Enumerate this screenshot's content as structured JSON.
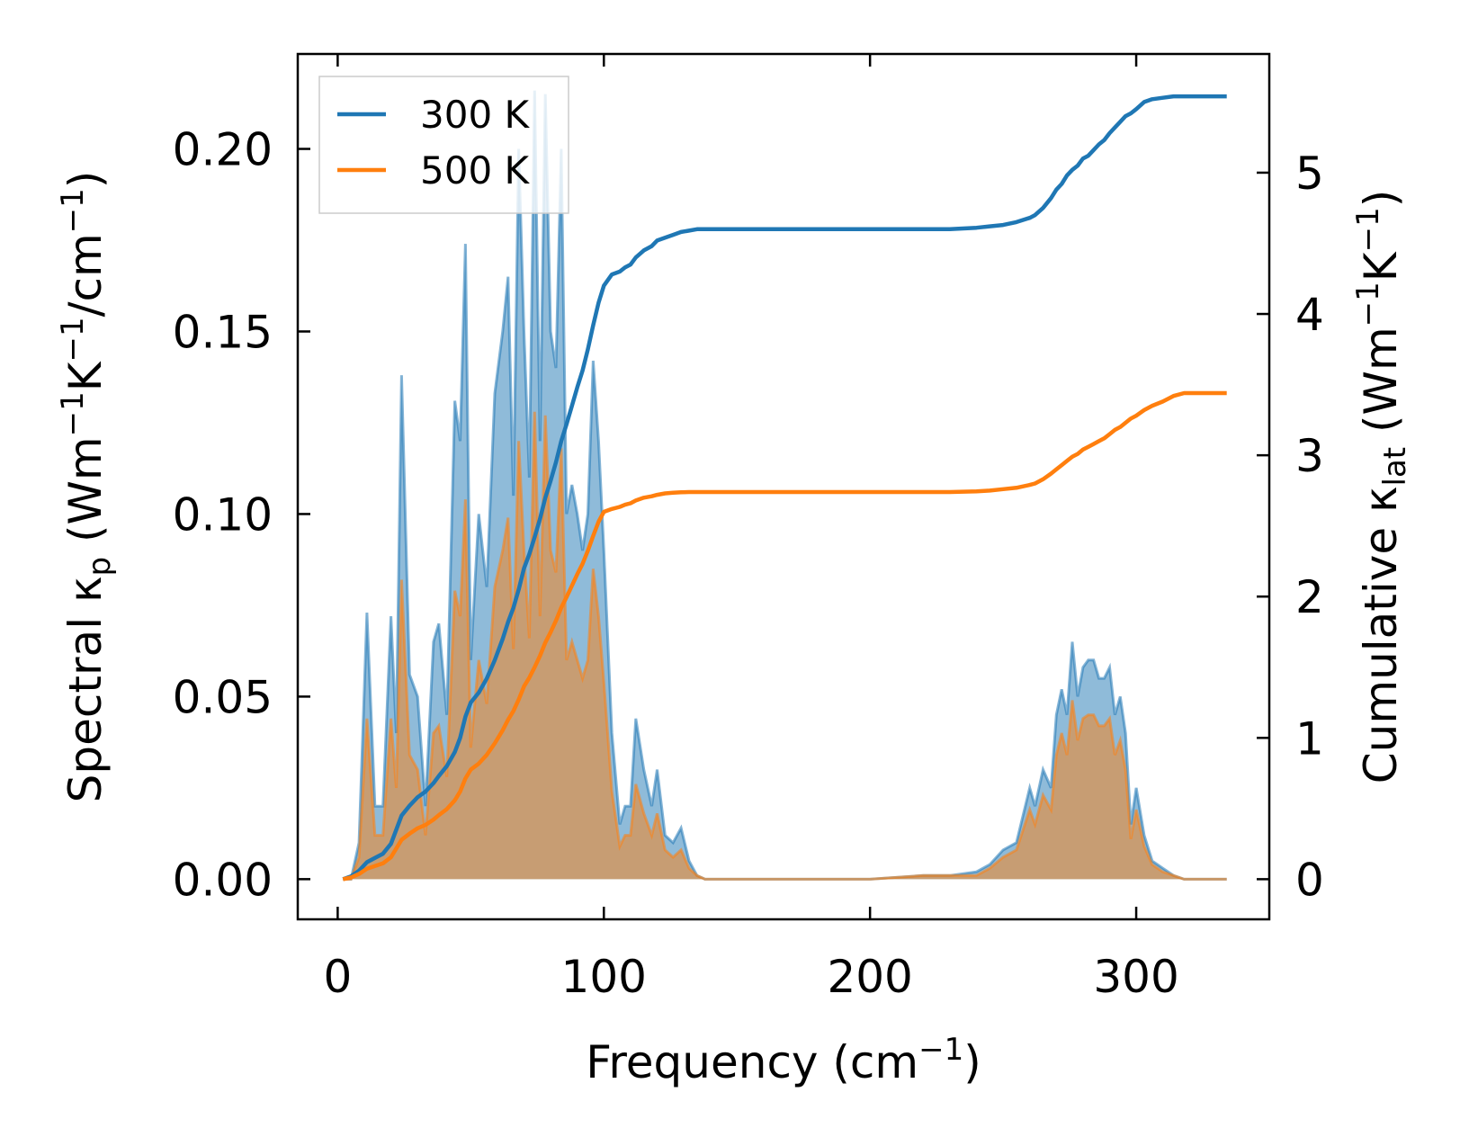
{
  "chart_data": {
    "type": "area",
    "xlabel": "Frequency (cm⁻¹)",
    "ylabel_left": "Spectral κₚ (Wm⁻¹K⁻¹/cm⁻¹)",
    "ylabel_right": "Cumulative κₗₐₜ (Wm⁻¹K⁻¹)",
    "xlim": [
      -15,
      350
    ],
    "ylim_left": [
      -0.011,
      0.226
    ],
    "ylim_right": [
      -0.284,
      5.84
    ],
    "x_ticks": [
      0,
      100,
      200,
      300
    ],
    "x_tick_labels": [
      "0",
      "100",
      "200",
      "300"
    ],
    "y_left_ticks": [
      0,
      0.05,
      0.1,
      0.15,
      0.2
    ],
    "y_left_tick_labels": [
      "0.00",
      "0.05",
      "0.10",
      "0.15",
      "0.20"
    ],
    "y_right_ticks": [
      0,
      1,
      2,
      3,
      4,
      5
    ],
    "y_right_tick_labels": [
      "0",
      "1",
      "2",
      "3",
      "4",
      "5"
    ],
    "legend": {
      "position": "top-left",
      "entries": [
        {
          "label": "300 K",
          "color": "#1f77b4"
        },
        {
          "label": "500 K",
          "color": "#ff7f0e"
        }
      ]
    },
    "x": [
      2,
      5,
      8,
      11,
      14,
      17,
      20,
      22,
      24,
      27,
      30,
      33,
      36,
      38,
      41,
      44,
      46,
      48,
      50,
      53,
      56,
      59,
      62,
      64,
      66,
      68,
      70,
      72,
      74,
      76,
      78,
      80,
      82,
      84,
      86,
      88,
      90,
      92,
      94,
      96,
      98,
      100,
      103,
      106,
      108,
      110,
      112,
      115,
      118,
      120,
      123,
      126,
      129,
      132,
      135,
      138,
      140,
      150,
      200,
      220,
      230,
      240,
      245,
      250,
      255,
      260,
      262,
      265,
      268,
      270,
      272,
      274,
      276,
      278,
      280,
      282,
      284,
      286,
      288,
      290,
      292,
      294,
      296,
      298,
      300,
      303,
      306,
      310,
      314,
      318,
      322,
      326,
      330,
      334
    ],
    "series": [
      {
        "name": "300 K",
        "color": "#1f77b4",
        "spectral": [
          0,
          0,
          0.01,
          0.073,
          0.02,
          0.02,
          0.072,
          0.04,
          0.138,
          0.056,
          0.05,
          0.02,
          0.065,
          0.07,
          0.045,
          0.131,
          0.12,
          0.174,
          0.06,
          0.1,
          0.08,
          0.133,
          0.15,
          0.165,
          0.105,
          0.2,
          0.15,
          0.11,
          0.216,
          0.12,
          0.215,
          0.15,
          0.14,
          0.2,
          0.1,
          0.108,
          0.1,
          0.09,
          0.1,
          0.142,
          0.12,
          0.09,
          0.04,
          0.015,
          0.02,
          0.02,
          0.044,
          0.03,
          0.02,
          0.03,
          0.012,
          0.01,
          0.014,
          0.005,
          0.001,
          0,
          0,
          0,
          0,
          0.001,
          0.001,
          0.002,
          0.004,
          0.008,
          0.01,
          0.025,
          0.02,
          0.03,
          0.025,
          0.045,
          0.052,
          0.045,
          0.065,
          0.05,
          0.058,
          0.06,
          0.06,
          0.055,
          0.055,
          0.058,
          0.045,
          0.05,
          0.04,
          0.015,
          0.025,
          0.012,
          0.005,
          0.003,
          0.001,
          0,
          0,
          0,
          0,
          0
        ],
        "cumulative": [
          0,
          0.02,
          0.06,
          0.12,
          0.15,
          0.18,
          0.25,
          0.35,
          0.45,
          0.52,
          0.58,
          0.62,
          0.68,
          0.73,
          0.8,
          0.9,
          1.0,
          1.15,
          1.25,
          1.32,
          1.42,
          1.55,
          1.7,
          1.82,
          1.92,
          2.05,
          2.2,
          2.3,
          2.42,
          2.55,
          2.7,
          2.82,
          2.95,
          3.1,
          3.22,
          3.35,
          3.48,
          3.6,
          3.75,
          3.92,
          4.08,
          4.2,
          4.28,
          4.3,
          4.33,
          4.35,
          4.4,
          4.45,
          4.48,
          4.52,
          4.54,
          4.56,
          4.58,
          4.59,
          4.6,
          4.6,
          4.6,
          4.6,
          4.6,
          4.6,
          4.6,
          4.61,
          4.62,
          4.63,
          4.65,
          4.68,
          4.7,
          4.75,
          4.82,
          4.88,
          4.92,
          4.98,
          5.02,
          5.05,
          5.1,
          5.12,
          5.16,
          5.2,
          5.23,
          5.28,
          5.32,
          5.36,
          5.4,
          5.42,
          5.45,
          5.5,
          5.52,
          5.53,
          5.54,
          5.54,
          5.54,
          5.54,
          5.54,
          5.54
        ]
      },
      {
        "name": "500 K",
        "color": "#ff7f0e",
        "spectral": [
          0,
          0,
          0.006,
          0.044,
          0.012,
          0.012,
          0.044,
          0.025,
          0.082,
          0.034,
          0.03,
          0.012,
          0.04,
          0.042,
          0.028,
          0.079,
          0.072,
          0.104,
          0.036,
          0.06,
          0.048,
          0.08,
          0.09,
          0.099,
          0.063,
          0.12,
          0.09,
          0.066,
          0.128,
          0.072,
          0.127,
          0.09,
          0.084,
          0.118,
          0.06,
          0.065,
          0.06,
          0.055,
          0.06,
          0.085,
          0.072,
          0.054,
          0.024,
          0.009,
          0.012,
          0.012,
          0.026,
          0.018,
          0.012,
          0.018,
          0.008,
          0.006,
          0.008,
          0.003,
          0.001,
          0,
          0,
          0,
          0,
          0.001,
          0.001,
          0.001,
          0.003,
          0.006,
          0.008,
          0.019,
          0.015,
          0.023,
          0.019,
          0.034,
          0.04,
          0.034,
          0.049,
          0.038,
          0.044,
          0.045,
          0.045,
          0.042,
          0.042,
          0.044,
          0.034,
          0.038,
          0.03,
          0.011,
          0.019,
          0.009,
          0.004,
          0.002,
          0.001,
          0,
          0,
          0,
          0,
          0
        ],
        "cumulative": [
          0,
          0.012,
          0.037,
          0.074,
          0.093,
          0.112,
          0.155,
          0.217,
          0.279,
          0.322,
          0.36,
          0.384,
          0.422,
          0.453,
          0.496,
          0.558,
          0.62,
          0.713,
          0.775,
          0.818,
          0.88,
          0.961,
          1.054,
          1.128,
          1.19,
          1.271,
          1.364,
          1.426,
          1.5,
          1.581,
          1.674,
          1.748,
          1.829,
          1.922,
          1.996,
          2.077,
          2.158,
          2.232,
          2.325,
          2.43,
          2.53,
          2.6,
          2.62,
          2.635,
          2.65,
          2.66,
          2.68,
          2.7,
          2.71,
          2.72,
          2.73,
          2.735,
          2.738,
          2.74,
          2.74,
          2.74,
          2.74,
          2.74,
          2.74,
          2.74,
          2.74,
          2.745,
          2.75,
          2.76,
          2.77,
          2.79,
          2.8,
          2.83,
          2.87,
          2.9,
          2.93,
          2.96,
          2.99,
          3.01,
          3.04,
          3.06,
          3.08,
          3.1,
          3.12,
          3.15,
          3.18,
          3.2,
          3.23,
          3.26,
          3.28,
          3.32,
          3.35,
          3.38,
          3.42,
          3.44,
          3.44,
          3.44,
          3.44,
          3.44
        ]
      }
    ]
  }
}
